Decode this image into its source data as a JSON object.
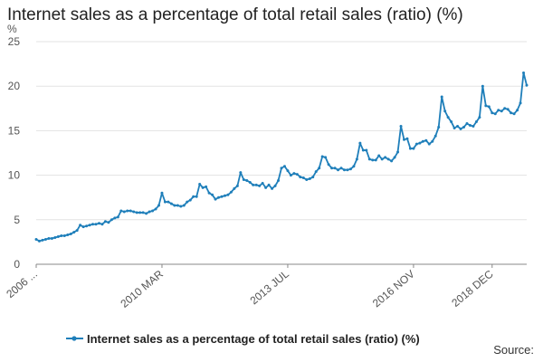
{
  "chart_data": {
    "type": "line",
    "title": "Internet sales as a percentage of total retail sales (ratio) (%)",
    "ylabel": "%",
    "xlabel": "",
    "ylim": [
      0,
      25
    ],
    "y_ticks": [
      0,
      5,
      10,
      15,
      20,
      25
    ],
    "x_tick_labels": [
      "2006 ...",
      "2010 MAR",
      "2013 JUL",
      "2016 NOV",
      "2018 DEC"
    ],
    "grid": true,
    "legend_position": "bottom",
    "color": "#1f7fba",
    "series": [
      {
        "name": "Internet sales as a percentage of total retail sales (ratio) (%)",
        "start": "2006-11",
        "values": [
          2.8,
          2.6,
          2.7,
          2.8,
          2.9,
          2.9,
          3.0,
          3.1,
          3.2,
          3.2,
          3.3,
          3.4,
          3.6,
          3.8,
          4.4,
          4.2,
          4.3,
          4.4,
          4.5,
          4.5,
          4.6,
          4.5,
          4.8,
          4.7,
          5.0,
          5.2,
          5.3,
          6.0,
          5.9,
          6.0,
          6.0,
          5.9,
          5.8,
          5.8,
          5.8,
          5.7,
          5.9,
          6.0,
          6.2,
          6.6,
          8.0,
          7.0,
          7.0,
          6.8,
          6.6,
          6.6,
          6.5,
          6.6,
          7.0,
          7.2,
          7.6,
          7.6,
          9.0,
          8.6,
          8.7,
          8.0,
          7.8,
          7.3,
          7.5,
          7.6,
          7.7,
          7.8,
          8.1,
          8.5,
          8.8,
          10.3,
          9.5,
          9.4,
          9.2,
          8.9,
          8.9,
          8.8,
          9.1,
          8.6,
          8.9,
          8.5,
          8.8,
          9.4,
          10.8,
          11.0,
          10.5,
          10.0,
          10.2,
          10.1,
          9.8,
          9.7,
          9.5,
          9.6,
          9.8,
          10.4,
          10.8,
          12.1,
          12.0,
          11.2,
          10.8,
          10.8,
          10.6,
          10.8,
          10.6,
          10.6,
          10.7,
          11.0,
          11.8,
          13.6,
          12.8,
          12.8,
          11.8,
          11.7,
          11.7,
          12.2,
          11.8,
          12.0,
          11.8,
          11.6,
          12.0,
          12.6,
          15.5,
          14.0,
          14.1,
          13.0,
          13.0,
          13.5,
          13.6,
          13.8,
          13.9,
          13.5,
          13.8,
          14.4,
          15.4,
          18.8,
          17.2,
          16.5,
          16.0,
          15.3,
          15.5,
          15.2,
          15.4,
          15.8,
          15.6,
          15.5,
          16.0,
          16.5,
          20.0,
          17.8,
          17.7,
          17.0,
          16.9,
          17.3,
          17.2,
          17.5,
          17.4,
          17.0,
          16.9,
          17.3,
          18.1,
          21.5,
          20.1
        ]
      }
    ]
  },
  "source_label": "Source:"
}
